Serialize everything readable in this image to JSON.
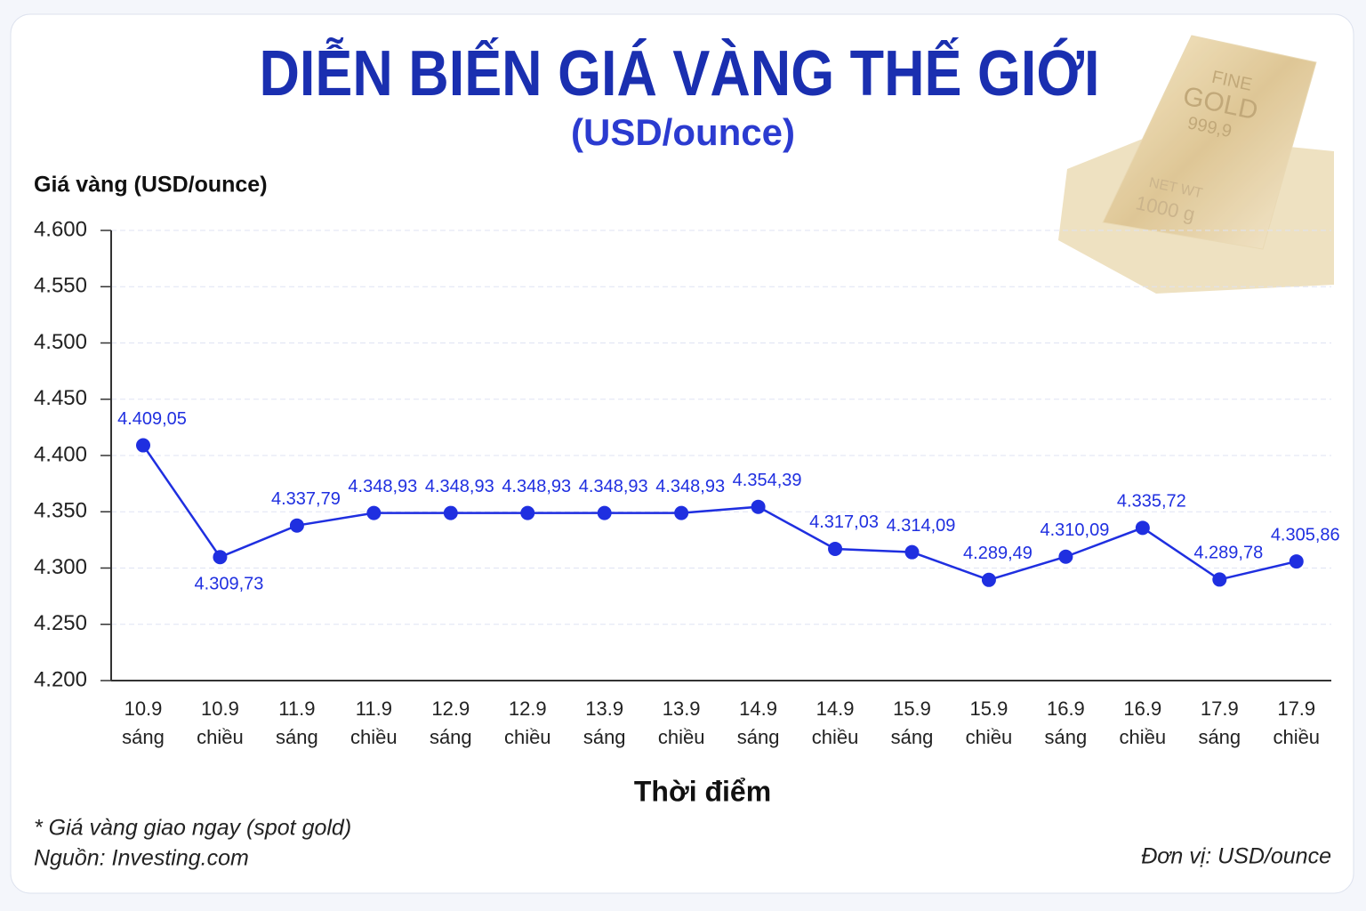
{
  "chart_data": {
    "type": "line",
    "title": "DIỄN BIẾN GIÁ VÀNG THẾ GIỚI",
    "subtitle": "(USD/ounce)",
    "y_label": "Giá vàng (USD/ounce)",
    "x_label": "Thời điểm",
    "note": "* Giá vàng giao ngay (spot gold)",
    "source": "Nguồn: Investing.com",
    "unit": "Đơn vị: USD/ounce",
    "image_text": [
      "FINE",
      "GOLD",
      "999,9",
      "NET WT",
      "1000 g"
    ],
    "categories": [
      "10.9\nsáng",
      "10.9\nchiều",
      "11.9\nsáng",
      "11.9\nchiều",
      "12.9\nsáng",
      "12.9\nchiều",
      "13.9\nsáng",
      "13.9\nchiều",
      "14.9\nsáng",
      "14.9\nchiều",
      "15.9\nsáng",
      "15.9\nchiều",
      "16.9\nsáng",
      "16.9\nchiều",
      "17.9\nsáng",
      "17.9\nchiều"
    ],
    "series": [
      {
        "name": "Giá vàng",
        "color": "#1f2fe0",
        "values": [
          4409.05,
          4309.73,
          4337.79,
          4348.93,
          4348.93,
          4348.93,
          4348.93,
          4348.93,
          4354.39,
          4317.03,
          4314.09,
          4289.49,
          4310.09,
          4335.72,
          4289.78,
          4305.86
        ],
        "value_labels": [
          "4.409,05",
          "4.309,73",
          "4.337,79",
          "4.348,93",
          "4.348,93",
          "4.348,93",
          "4.348,93",
          "4.348,93",
          "4.354,39",
          "4.317,03",
          "4.314,09",
          "4.289,49",
          "4.310,09",
          "4.335,72",
          "4.289,78",
          "4.305,86"
        ]
      }
    ],
    "ylim": [
      4200,
      4600
    ],
    "yticks": [
      {
        "value": 4200,
        "label": "4.200"
      },
      {
        "value": 4250,
        "label": "4.250"
      },
      {
        "value": 4300,
        "label": "4.300"
      },
      {
        "value": 4350,
        "label": "4.350"
      },
      {
        "value": 4400,
        "label": "4.400"
      },
      {
        "value": 4450,
        "label": "4.450"
      },
      {
        "value": 4500,
        "label": "4.500"
      },
      {
        "value": 4550,
        "label": "4.550"
      },
      {
        "value": 4600,
        "label": "4.600"
      }
    ],
    "grid": true
  }
}
